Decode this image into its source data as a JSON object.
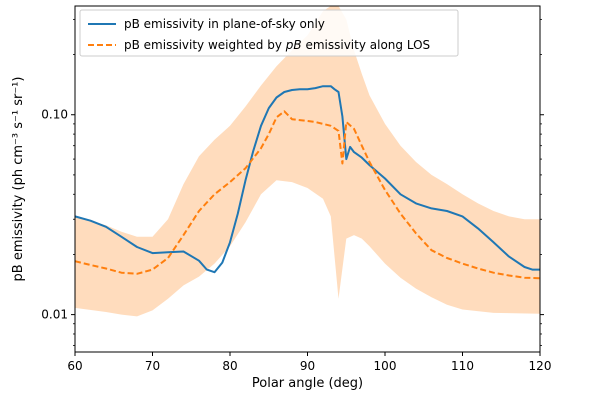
{
  "chart_data": {
    "type": "line",
    "xlabel": "Polar angle (deg)",
    "ylabel": "pB emissivity (ph cm⁻³ s⁻¹ sr⁻¹)",
    "xlim": [
      60,
      120
    ],
    "ylim": [
      0.0065,
      0.35
    ],
    "yscale": "log",
    "xticks": [
      60,
      70,
      80,
      90,
      100,
      110,
      120
    ],
    "yticks": [
      {
        "value": 0.01,
        "label": "0.01"
      },
      {
        "value": 0.1,
        "label": "0.10"
      }
    ],
    "grid": false,
    "legend": "top-left",
    "series": [
      {
        "name": "pB emissivity in plane-of-sky only",
        "color": "#1f77b4",
        "style": "solid",
        "points": [
          [
            60,
            0.031
          ],
          [
            62,
            0.0295
          ],
          [
            64,
            0.0275
          ],
          [
            66,
            0.0245
          ],
          [
            68,
            0.0218
          ],
          [
            70,
            0.0203
          ],
          [
            72,
            0.0205
          ],
          [
            74,
            0.0207
          ],
          [
            76,
            0.0186
          ],
          [
            77,
            0.0168
          ],
          [
            78,
            0.0163
          ],
          [
            79,
            0.0182
          ],
          [
            80,
            0.023
          ],
          [
            81,
            0.032
          ],
          [
            82,
            0.047
          ],
          [
            83,
            0.066
          ],
          [
            84,
            0.088
          ],
          [
            85,
            0.108
          ],
          [
            86,
            0.122
          ],
          [
            87,
            0.13
          ],
          [
            88,
            0.133
          ],
          [
            89,
            0.134
          ],
          [
            90,
            0.134
          ],
          [
            91,
            0.136
          ],
          [
            92,
            0.139
          ],
          [
            93,
            0.139
          ],
          [
            93.5,
            0.134
          ],
          [
            94,
            0.13
          ],
          [
            94.5,
            0.098
          ],
          [
            95,
            0.06
          ],
          [
            95.5,
            0.069
          ],
          [
            96,
            0.065
          ],
          [
            97,
            0.061
          ],
          [
            98,
            0.056
          ],
          [
            100,
            0.048
          ],
          [
            102,
            0.04
          ],
          [
            104,
            0.036
          ],
          [
            106,
            0.034
          ],
          [
            108,
            0.033
          ],
          [
            110,
            0.031
          ],
          [
            112,
            0.027
          ],
          [
            114,
            0.023
          ],
          [
            116,
            0.0195
          ],
          [
            118,
            0.0173
          ],
          [
            119,
            0.0168
          ],
          [
            120,
            0.0168
          ]
        ]
      },
      {
        "name": "pB emissivity weighted by pB emissivity along LOS",
        "name_prefix": "pB emissivity weighted by ",
        "name_italic": "pB",
        "name_suffix": " emissivity along LOS",
        "color": "#ff7f0e",
        "style": "dashed",
        "points": [
          [
            60,
            0.0185
          ],
          [
            62,
            0.0177
          ],
          [
            64,
            0.017
          ],
          [
            66,
            0.0162
          ],
          [
            68,
            0.016
          ],
          [
            70,
            0.0168
          ],
          [
            72,
            0.0192
          ],
          [
            74,
            0.025
          ],
          [
            76,
            0.033
          ],
          [
            78,
            0.04
          ],
          [
            80,
            0.046
          ],
          [
            82,
            0.054
          ],
          [
            84,
            0.068
          ],
          [
            85,
            0.08
          ],
          [
            86,
            0.097
          ],
          [
            87,
            0.104
          ],
          [
            88,
            0.095
          ],
          [
            89,
            0.094
          ],
          [
            90,
            0.093
          ],
          [
            91,
            0.092
          ],
          [
            92,
            0.09
          ],
          [
            93,
            0.088
          ],
          [
            94,
            0.083
          ],
          [
            94.5,
            0.057
          ],
          [
            95,
            0.092
          ],
          [
            96,
            0.085
          ],
          [
            97,
            0.07
          ],
          [
            98,
            0.058
          ],
          [
            100,
            0.042
          ],
          [
            102,
            0.032
          ],
          [
            104,
            0.0255
          ],
          [
            106,
            0.021
          ],
          [
            108,
            0.0192
          ],
          [
            110,
            0.018
          ],
          [
            112,
            0.017
          ],
          [
            114,
            0.0162
          ],
          [
            116,
            0.0157
          ],
          [
            118,
            0.0153
          ],
          [
            120,
            0.0152
          ]
        ]
      }
    ],
    "band": {
      "color": "#ffdab9",
      "upper": [
        [
          60,
          0.031
        ],
        [
          62,
          0.0295
        ],
        [
          64,
          0.028
        ],
        [
          66,
          0.026
        ],
        [
          68,
          0.0245
        ],
        [
          70,
          0.0245
        ],
        [
          72,
          0.03
        ],
        [
          74,
          0.045
        ],
        [
          76,
          0.062
        ],
        [
          78,
          0.075
        ],
        [
          80,
          0.088
        ],
        [
          82,
          0.11
        ],
        [
          84,
          0.14
        ],
        [
          86,
          0.175
        ],
        [
          88,
          0.21
        ],
        [
          90,
          0.25
        ],
        [
          92,
          0.33
        ],
        [
          93,
          0.35
        ],
        [
          94,
          0.35
        ],
        [
          95,
          0.3
        ],
        [
          96,
          0.21
        ],
        [
          97,
          0.16
        ],
        [
          98,
          0.125
        ],
        [
          100,
          0.09
        ],
        [
          102,
          0.07
        ],
        [
          104,
          0.058
        ],
        [
          106,
          0.05
        ],
        [
          108,
          0.045
        ],
        [
          110,
          0.04
        ],
        [
          112,
          0.036
        ],
        [
          114,
          0.033
        ],
        [
          116,
          0.031
        ],
        [
          118,
          0.03
        ],
        [
          120,
          0.03
        ]
      ],
      "lower": [
        [
          60,
          0.0108
        ],
        [
          64,
          0.0103
        ],
        [
          66,
          0.01
        ],
        [
          68,
          0.0098
        ],
        [
          70,
          0.0105
        ],
        [
          72,
          0.012
        ],
        [
          74,
          0.014
        ],
        [
          76,
          0.0155
        ],
        [
          78,
          0.018
        ],
        [
          80,
          0.022
        ],
        [
          82,
          0.029
        ],
        [
          84,
          0.04
        ],
        [
          86,
          0.047
        ],
        [
          88,
          0.046
        ],
        [
          90,
          0.043
        ],
        [
          92,
          0.038
        ],
        [
          93,
          0.031
        ],
        [
          94,
          0.012
        ],
        [
          95,
          0.024
        ],
        [
          96,
          0.025
        ],
        [
          97,
          0.024
        ],
        [
          98,
          0.022
        ],
        [
          100,
          0.018
        ],
        [
          102,
          0.0153
        ],
        [
          104,
          0.0135
        ],
        [
          106,
          0.0122
        ],
        [
          108,
          0.0112
        ],
        [
          110,
          0.0106
        ],
        [
          114,
          0.0102
        ],
        [
          120,
          0.0101
        ]
      ]
    }
  }
}
